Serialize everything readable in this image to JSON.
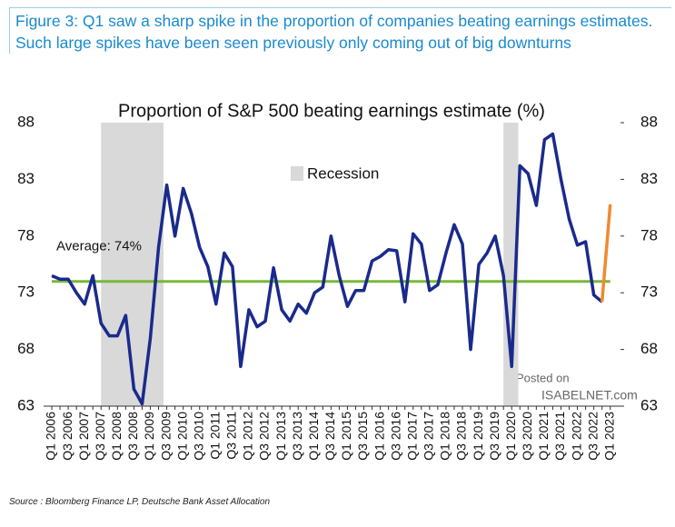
{
  "caption": "Figure 3: Q1 saw a sharp spike in the proportion of companies beating earnings estimates. Such large spikes have been seen previously only coming out of big downturns",
  "source": "Source : Bloomberg Finance LP, Deutsche Bank Asset Allocation",
  "watermark": [
    "Posted on",
    "ISABELNET.com"
  ],
  "chart_data": {
    "type": "line",
    "title": "Proportion of S&P 500 beating earnings estimate (%)",
    "categories": [
      "Q1 2006",
      null,
      "Q3 2006",
      null,
      "Q1 2007",
      null,
      "Q3 2007",
      null,
      "Q1 2008",
      null,
      "Q3 2008",
      null,
      "Q1 2009",
      null,
      "Q3 2009",
      null,
      "Q1 2010",
      null,
      "Q3 2010",
      null,
      "Q1 2011",
      null,
      "Q3 2011",
      null,
      "Q1 2012",
      null,
      "Q3 2012",
      null,
      "Q1 2013",
      null,
      "Q3 2013",
      null,
      "Q1 2014",
      null,
      "Q3 2014",
      null,
      "Q1 2015",
      null,
      "Q3 2015",
      null,
      "Q1 2016",
      null,
      "Q3 2016",
      null,
      "Q1 2017",
      null,
      "Q3 2017",
      null,
      "Q1 2018",
      null,
      "Q3 2018",
      null,
      "Q1 2019",
      null,
      "Q3 2019",
      null,
      "Q1 2020",
      null,
      "Q3 2020",
      null,
      "Q1 2021",
      null,
      "Q3 2021",
      null,
      "Q1 2022",
      null,
      "Q3 2022",
      null,
      "Q1 2023"
    ],
    "series": [
      {
        "color": "#1a2a8c",
        "values": [
          74.5,
          74.2,
          74.2,
          73,
          72,
          74.5,
          70.3,
          69.2,
          69.2,
          71,
          64.5,
          63.2,
          69,
          77,
          82.5,
          78,
          82.2,
          80,
          77,
          75.3,
          72,
          76.5,
          75.3,
          66.5,
          71.5,
          70,
          70.5,
          75.2,
          71.5,
          70.5,
          72,
          71.2,
          73,
          73.5,
          78,
          74.5,
          71.8,
          73.2,
          73.2,
          75.8,
          76.2,
          76.8,
          76.7,
          72.2,
          78.2,
          77.3,
          73.2,
          73.7,
          76.5,
          79,
          77.3,
          68,
          75.5,
          76.5,
          78,
          74.5,
          66.5,
          84.2,
          83.5,
          80.7,
          86.5,
          87,
          83,
          79.5,
          77.2,
          77.5,
          72.8,
          72.2,
          null
        ]
      },
      {
        "color": "#f08a30",
        "values": [
          null,
          null,
          null,
          null,
          null,
          null,
          null,
          null,
          null,
          null,
          null,
          null,
          null,
          null,
          null,
          null,
          null,
          null,
          null,
          null,
          null,
          null,
          null,
          null,
          null,
          null,
          null,
          null,
          null,
          null,
          null,
          null,
          null,
          null,
          null,
          null,
          null,
          null,
          null,
          null,
          null,
          null,
          null,
          null,
          null,
          null,
          null,
          null,
          null,
          null,
          null,
          null,
          null,
          null,
          null,
          null,
          null,
          null,
          null,
          null,
          null,
          null,
          null,
          null,
          null,
          null,
          null,
          72.2,
          80.8
        ]
      }
    ],
    "average": {
      "value": 74,
      "label": "Average: 74%",
      "color": "#7ab83a"
    },
    "recession": {
      "name": "Recession",
      "color": "#d9d9d9",
      "ranges": [
        [
          6,
          13.6
        ],
        [
          55,
          56.8
        ]
      ]
    },
    "ylim": [
      63,
      88
    ],
    "yticks": [
      63,
      68,
      73,
      78,
      83,
      88
    ]
  }
}
